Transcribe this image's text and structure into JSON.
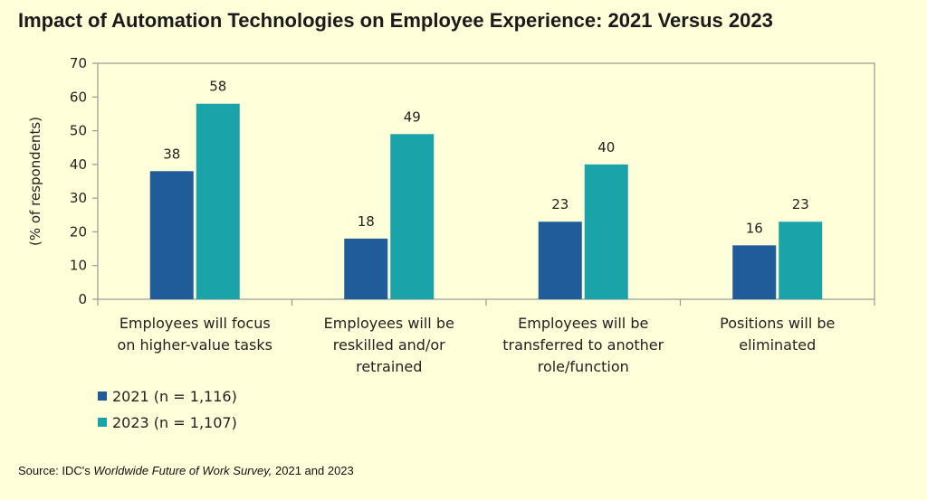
{
  "chart_data": {
    "type": "bar",
    "title": "Impact of Automation Technologies on Employee Experience: 2021 Versus 2023",
    "ylabel": "(% of respondents)",
    "xlabel": "",
    "ylim": [
      0,
      70
    ],
    "yticks": [
      0,
      10,
      20,
      30,
      40,
      50,
      60,
      70
    ],
    "categories": [
      [
        "Employees will focus",
        "on higher-value tasks"
      ],
      [
        "Employees will be",
        "reskilled and/or",
        "retrained"
      ],
      [
        "Employees will be",
        "transferred to another",
        "role/function"
      ],
      [
        "Positions will be",
        "eliminated"
      ]
    ],
    "series": [
      {
        "name": "2021 (n = 1,116)",
        "color": "#1f5c99",
        "values": [
          38,
          18,
          23,
          16
        ]
      },
      {
        "name": "2023 (n = 1,107)",
        "color": "#1ba3aa",
        "values": [
          58,
          49,
          40,
          23
        ]
      }
    ],
    "legend_position": "bottom-left",
    "grid": false
  },
  "source": {
    "prefix": "Source: IDC's ",
    "italic": "Worldwide Future of Work Survey,",
    "suffix": " 2021 and 2023"
  }
}
